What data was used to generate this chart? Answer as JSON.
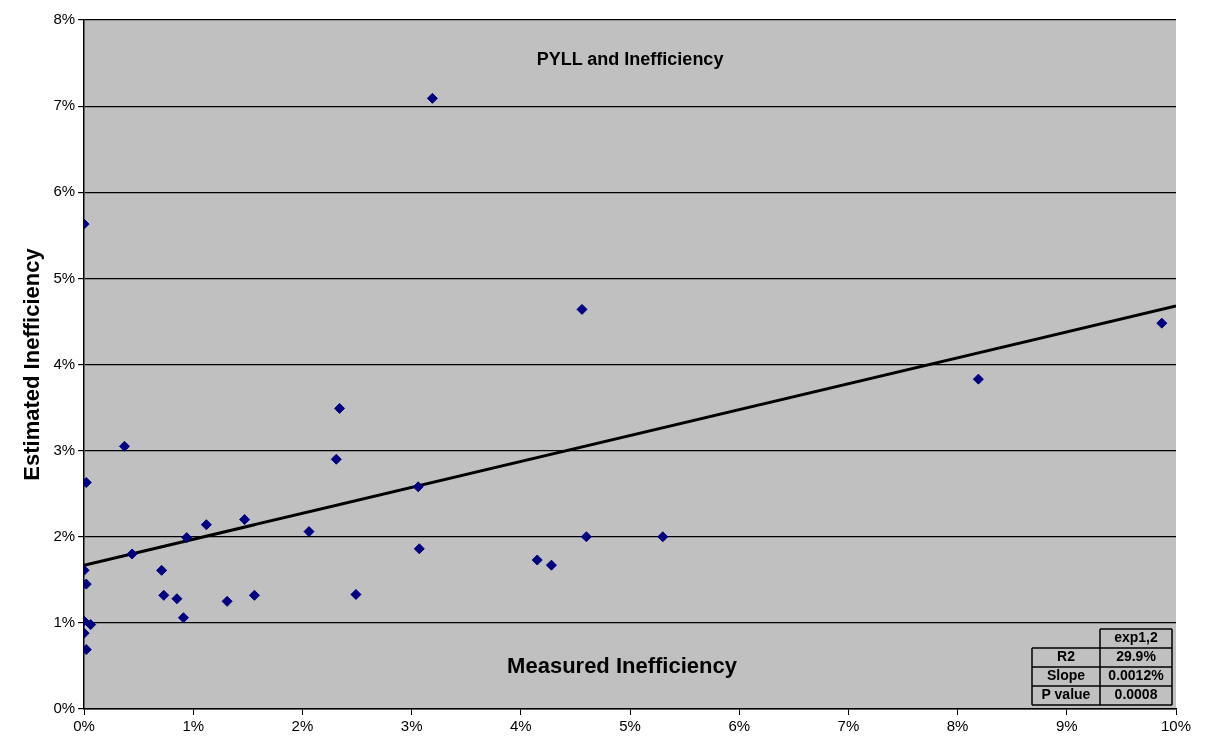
{
  "chart_data": {
    "type": "scatter",
    "title": "PYLL and Inefficiency",
    "xlabel": "Measured Inefficiency",
    "ylabel": "Estimated Inefficiency",
    "xlim": [
      0,
      10
    ],
    "ylim": [
      0,
      8
    ],
    "xticks": [
      {
        "value": 0,
        "label": "0%"
      },
      {
        "value": 1,
        "label": "1%"
      },
      {
        "value": 2,
        "label": "2%"
      },
      {
        "value": 3,
        "label": "3%"
      },
      {
        "value": 4,
        "label": "4%"
      },
      {
        "value": 5,
        "label": "5%"
      },
      {
        "value": 6,
        "label": "6%"
      },
      {
        "value": 7,
        "label": "7%"
      },
      {
        "value": 8,
        "label": "8%"
      },
      {
        "value": 9,
        "label": "9%"
      },
      {
        "value": 10,
        "label": "10%"
      }
    ],
    "yticks": [
      {
        "value": 0,
        "label": "0%"
      },
      {
        "value": 1,
        "label": "1%"
      },
      {
        "value": 2,
        "label": "2%"
      },
      {
        "value": 3,
        "label": "3%"
      },
      {
        "value": 4,
        "label": "4%"
      },
      {
        "value": 5,
        "label": "5%"
      },
      {
        "value": 6,
        "label": "6%"
      },
      {
        "value": 7,
        "label": "7%"
      },
      {
        "value": 8,
        "label": "8%"
      }
    ],
    "grid": "y",
    "legend": false,
    "marker": "diamond",
    "series": [
      {
        "type": "scatter",
        "color": "#000080",
        "x": [
          0,
          0.02,
          0.37,
          0,
          0.02,
          0.44,
          0,
          0.06,
          0,
          0.02,
          0.71,
          0.73,
          0.85,
          0.91,
          0.94,
          1.12,
          1.47,
          1.31,
          1.56,
          2.06,
          2.31,
          2.34,
          2.49,
          3.06,
          3.07,
          3.19,
          4.15,
          4.28,
          4.56,
          4.6,
          5.3,
          8.19,
          9.87
        ],
        "values": [
          5.63,
          2.63,
          3.05,
          1.61,
          1.45,
          1.8,
          1.02,
          0.98,
          0.88,
          0.69,
          1.61,
          1.32,
          1.28,
          1.06,
          1.99,
          2.14,
          2.2,
          1.25,
          1.32,
          2.06,
          2.9,
          3.49,
          1.33,
          2.58,
          1.86,
          7.09,
          1.73,
          1.67,
          4.64,
          2,
          2,
          3.83,
          4.48
        ]
      },
      {
        "type": "line",
        "color": "#000000",
        "x": [
          0,
          10
        ],
        "values": [
          1.67,
          4.68
        ],
        "marker": "none",
        "line_style": "solid"
      }
    ],
    "annotations": [
      "exp1,2",
      "R2",
      "29.9%",
      "Slope",
      "0.0012%",
      "P value",
      "0.0008"
    ]
  }
}
